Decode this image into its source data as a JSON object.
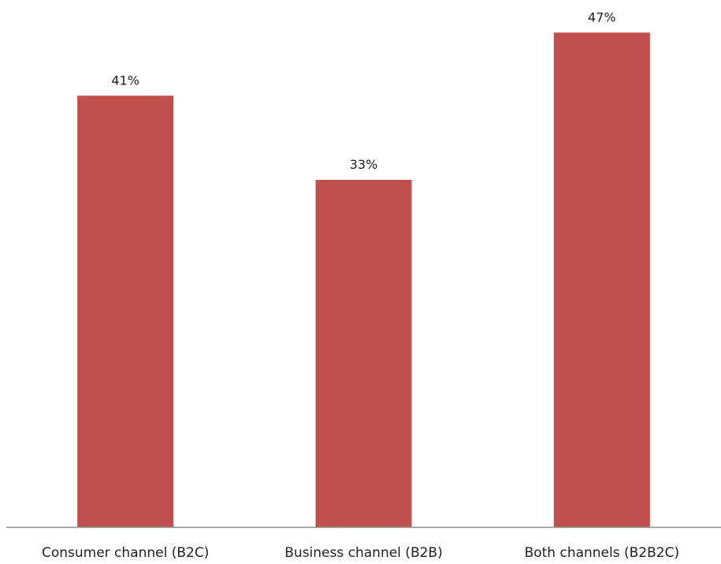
{
  "chart_data": {
    "type": "bar",
    "categories": [
      "Consumer channel (B2C)",
      "Business channel (B2B)",
      "Both channels (B2B2C)"
    ],
    "values": [
      41,
      33,
      47
    ],
    "data_labels": [
      "41%",
      "33%",
      "47%"
    ],
    "value_unit": "%",
    "title": "",
    "xlabel": "",
    "ylabel": "",
    "ylim": [
      0,
      48
    ],
    "grid": false,
    "legend": "none",
    "bar_color": "#C0504D"
  }
}
